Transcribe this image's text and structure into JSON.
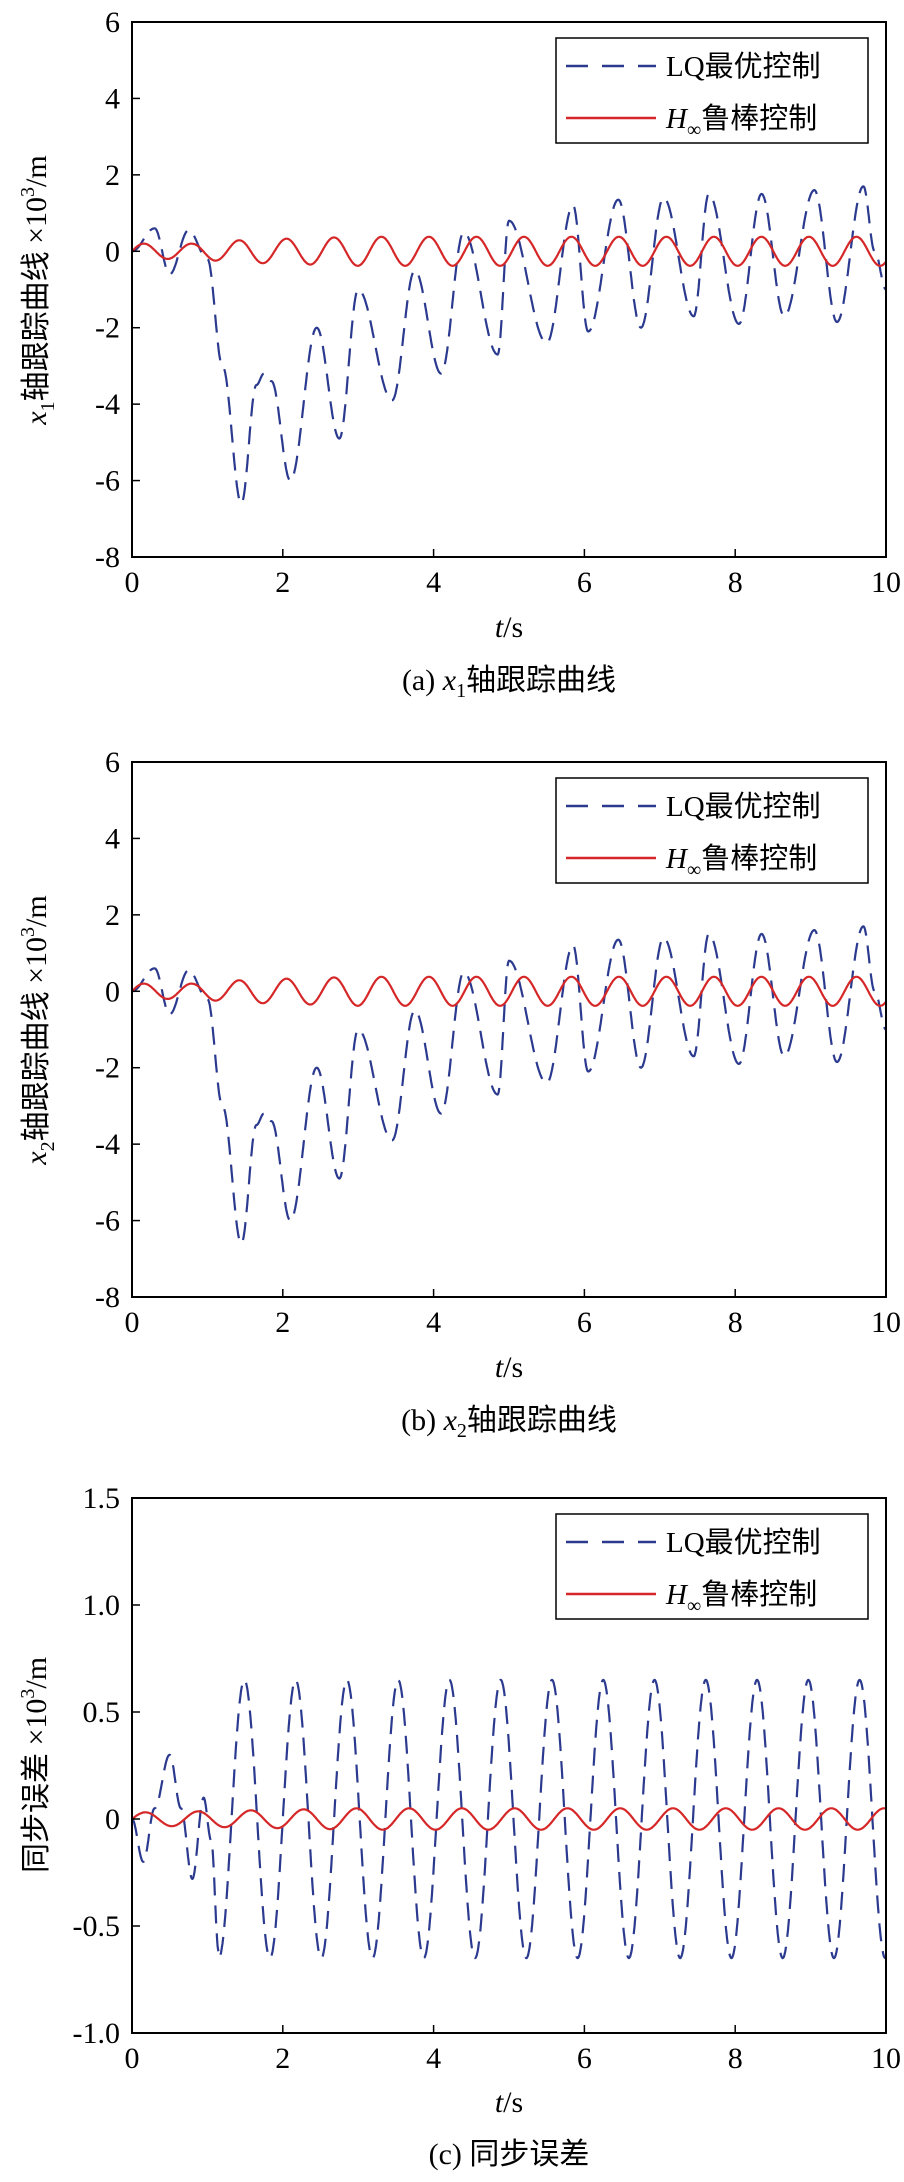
{
  "figure": {
    "legend_lq": "LQ最优控制",
    "legend_h_main": "H",
    "legend_h_sub": "∞",
    "legend_h_rest": "鲁棒控制",
    "xlabel_main": "t",
    "xlabel_unit": "/s"
  },
  "chart_data": [
    {
      "type": "line",
      "caption_prefix": "(a) ",
      "caption_var": "x",
      "caption_sub": "1",
      "caption_rest": "轴跟踪曲线",
      "ylabel_var": "x",
      "ylabel_sub": "1",
      "ylabel_rest": "轴跟踪曲线 ×10",
      "ylabel_sup": "3",
      "ylabel_unit": "/m",
      "xlim": [
        0,
        10
      ],
      "ylim": [
        -8,
        6
      ],
      "xticks": [
        "0",
        "2",
        "4",
        "6",
        "8",
        "10"
      ],
      "yticks": [
        "-8",
        "-6",
        "-4",
        "-2",
        "0",
        "2",
        "4",
        "6"
      ],
      "series": [
        {
          "name": "LQ最优控制",
          "color": "#2b3a8f",
          "style": "dashed",
          "x": [
            0,
            0.3,
            0.5,
            0.75,
            1.0,
            1.2,
            1.45,
            1.65,
            1.75,
            1.85,
            2.1,
            2.45,
            2.75,
            3.0,
            3.45,
            3.75,
            4.1,
            4.4,
            4.85,
            5.0,
            5.5,
            5.85,
            6.05,
            6.45,
            6.75,
            7.05,
            7.45,
            7.65,
            8.05,
            8.35,
            8.65,
            9.05,
            9.35,
            9.7,
            9.85,
            10.0
          ],
          "y": [
            0,
            0.6,
            -0.6,
            0.55,
            -0.2,
            -3.0,
            -6.6,
            -3.5,
            -3.2,
            -3.4,
            -6.0,
            -2.0,
            -4.9,
            -1.0,
            -3.9,
            -0.5,
            -3.2,
            0.5,
            -2.7,
            0.8,
            -2.4,
            1.2,
            -2.1,
            1.35,
            -2.0,
            1.4,
            -1.7,
            1.5,
            -1.9,
            1.5,
            -1.7,
            1.6,
            -1.85,
            1.7,
            0.0,
            -1.0
          ]
        },
        {
          "name": "H∞鲁棒控制",
          "color": "#d62728",
          "style": "solid",
          "amp": [
            0.2,
            0.2,
            0.3,
            0.38,
            0.38,
            0.38
          ],
          "amp_t": [
            0,
            0.8,
            1.5,
            3.0,
            6.0,
            10.0
          ],
          "period": 0.63
        }
      ]
    },
    {
      "type": "line",
      "caption_prefix": "(b) ",
      "caption_var": "x",
      "caption_sub": "2",
      "caption_rest": "轴跟踪曲线",
      "ylabel_var": "x",
      "ylabel_sub": "2",
      "ylabel_rest": "轴跟踪曲线 ×10",
      "ylabel_sup": "3",
      "ylabel_unit": "/m",
      "xlim": [
        0,
        10
      ],
      "ylim": [
        -8,
        6
      ],
      "xticks": [
        "0",
        "2",
        "4",
        "6",
        "8",
        "10"
      ],
      "yticks": [
        "-8",
        "-6",
        "-4",
        "-2",
        "0",
        "2",
        "4",
        "6"
      ],
      "series": [
        {
          "name": "LQ最优控制",
          "color": "#2b3a8f",
          "style": "dashed",
          "x": [
            0,
            0.3,
            0.5,
            0.75,
            1.0,
            1.2,
            1.45,
            1.65,
            1.75,
            1.85,
            2.1,
            2.45,
            2.75,
            3.0,
            3.45,
            3.75,
            4.1,
            4.4,
            4.85,
            5.0,
            5.5,
            5.85,
            6.05,
            6.45,
            6.75,
            7.05,
            7.45,
            7.65,
            8.05,
            8.35,
            8.65,
            9.05,
            9.35,
            9.7,
            9.85,
            10.0
          ],
          "y": [
            0,
            0.6,
            -0.6,
            0.55,
            -0.2,
            -3.0,
            -6.6,
            -3.5,
            -3.2,
            -3.4,
            -6.0,
            -2.0,
            -4.9,
            -1.0,
            -3.9,
            -0.5,
            -3.2,
            0.5,
            -2.7,
            0.8,
            -2.4,
            1.2,
            -2.1,
            1.35,
            -2.0,
            1.4,
            -1.7,
            1.5,
            -1.9,
            1.5,
            -1.7,
            1.6,
            -1.85,
            1.7,
            0.0,
            -1.0
          ]
        },
        {
          "name": "H∞鲁棒控制",
          "color": "#d62728",
          "style": "solid",
          "amp": [
            0.2,
            0.2,
            0.3,
            0.38,
            0.38,
            0.38
          ],
          "amp_t": [
            0,
            0.8,
            1.5,
            3.0,
            6.0,
            10.0
          ],
          "period": 0.63
        }
      ]
    },
    {
      "type": "line",
      "caption_prefix": "(c) ",
      "caption_var": "",
      "caption_sub": "",
      "caption_rest": "同步误差",
      "ylabel_var": "",
      "ylabel_sub": "",
      "ylabel_rest": "同步误差 ×10",
      "ylabel_sup": "3",
      "ylabel_unit": "/m",
      "xlim": [
        0,
        10
      ],
      "ylim": [
        -1.0,
        1.5
      ],
      "xticks": [
        "0",
        "2",
        "4",
        "6",
        "8",
        "10"
      ],
      "yticks": [
        "-1.0",
        "-0.5",
        "0",
        "0.5",
        "1.0",
        "1.5"
      ],
      "series": [
        {
          "name": "LQ最优控制",
          "color": "#2b3a8f",
          "style": "dashed",
          "x": [
            0,
            0.15,
            0.3,
            0.5,
            0.65,
            0.8,
            0.95,
            1.05,
            1.15,
            1.55
          ],
          "y": [
            0,
            -0.2,
            0.05,
            0.3,
            0.05,
            -0.28,
            0.1,
            -0.1,
            -0.62,
            0.65
          ],
          "osc_start": 1.15,
          "osc_period": 0.68,
          "osc_amp": 0.65
        },
        {
          "name": "H∞鲁棒控制",
          "color": "#d62728",
          "style": "solid",
          "amp": [
            0.03,
            0.04,
            0.05,
            0.05
          ],
          "amp_t": [
            0,
            1.5,
            3.0,
            10.0
          ],
          "period": 0.7
        }
      ]
    }
  ]
}
